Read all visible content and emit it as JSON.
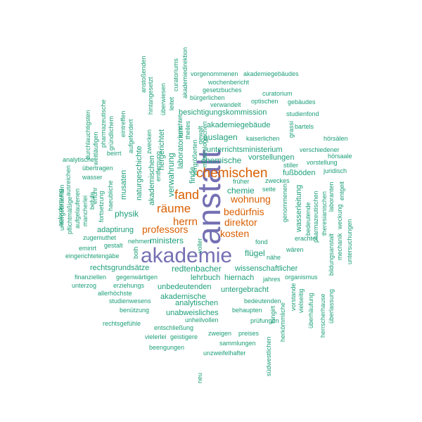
{
  "colors": {
    "large": "#7570b3",
    "medium": "#d95f02",
    "small": "#1b9e77"
  },
  "words": [
    "anstalt",
    "akademie",
    "chemischen",
    "fand",
    "räume",
    "herrn",
    "professors",
    "wohnung",
    "bedürfnis",
    "direktor",
    "kosten",
    "chemie",
    "chemische",
    "ministers",
    "flügel",
    "redtenbacher",
    "physik",
    "adaptirung",
    "laboratorium",
    "verwahrung",
    "naturgeschichte",
    "akademischen",
    "besichtigungskommission",
    "akademiegebäude",
    "auslagen",
    "unterrichtsministerium",
    "vorstellungen",
    "fußböden",
    "wasserleitung",
    "rechtsgrundsätze",
    "lehrbuch",
    "hiernach",
    "wissenschaftlicher",
    "unbedeutenden",
    "untergebracht",
    "akademische",
    "analytischen",
    "unabweisliches",
    "vorgenommenen",
    "akademiegebäudes",
    "wochenbericht",
    "gesetzbuches",
    "curatorium",
    "bürgerlichen",
    "optischen",
    "gebäudes",
    "verwandelt",
    "studienfond",
    "kaiserlichen",
    "hörsälen",
    "verschiedener",
    "hörsaale",
    "vorstellung",
    "juridisch",
    "entgeit",
    "bartels",
    "grassi",
    "stiller",
    "früher",
    "zweckes",
    "seite",
    "fond",
    "nähe",
    "erachtet",
    "wären",
    "bedeutende",
    "genommenen",
    "pharmazeutischen",
    "theresianischen",
    "laboranten",
    "mechanik",
    "weckung",
    "untersuchungen",
    "bildungsanstalt",
    "organismus",
    "jahres",
    "vorstande",
    "vielseitig",
    "überhäufung",
    "herrscherhause",
    "überlassung",
    "bedeutenden",
    "behaupten",
    "herkömmliche",
    "tungirt",
    "prüfungen",
    "südwestlichen",
    "unheilvollen",
    "zweigen",
    "preises",
    "sammlungen",
    "unzweifelhafter",
    "geistigere",
    "vielerlei",
    "beengungen",
    "entschließung",
    "rechtsgefühle",
    "benützung",
    "studienwesens",
    "allerhöchste",
    "erziehungs",
    "unterzog",
    "finanziellen",
    "gegenwärtigen",
    "eingerichtetengäbe",
    "emirirt",
    "gestalt",
    "nehmen",
    "zugemuthet",
    "both",
    "durchlauchtigsten",
    "weitläufigen",
    "pharmazeutische",
    "gründlichem",
    "beirrt",
    "analytische",
    "übertragen",
    "wasser",
    "eintreffen",
    "aufgefordert",
    "zwecken",
    "anstoßenden",
    "hintangesetzt",
    "überwiesen",
    "leitet",
    "akademiedirektion",
    "curatoriums",
    "theiles",
    "errichtet",
    "hergerichtet",
    "entfernung",
    "vergrößerten",
    "finde",
    "gewalt",
    "mineralogischen",
    "musaten",
    "haeubliche",
    "fortsetzung",
    "befufe",
    "mancherlei",
    "aufgelaufenen",
    "pflichtmäßige",
    "untergebrachten",
    "ausreichen",
    "anfordernung",
    "erfuhr",
    "neu",
    "voller"
  ]
}
